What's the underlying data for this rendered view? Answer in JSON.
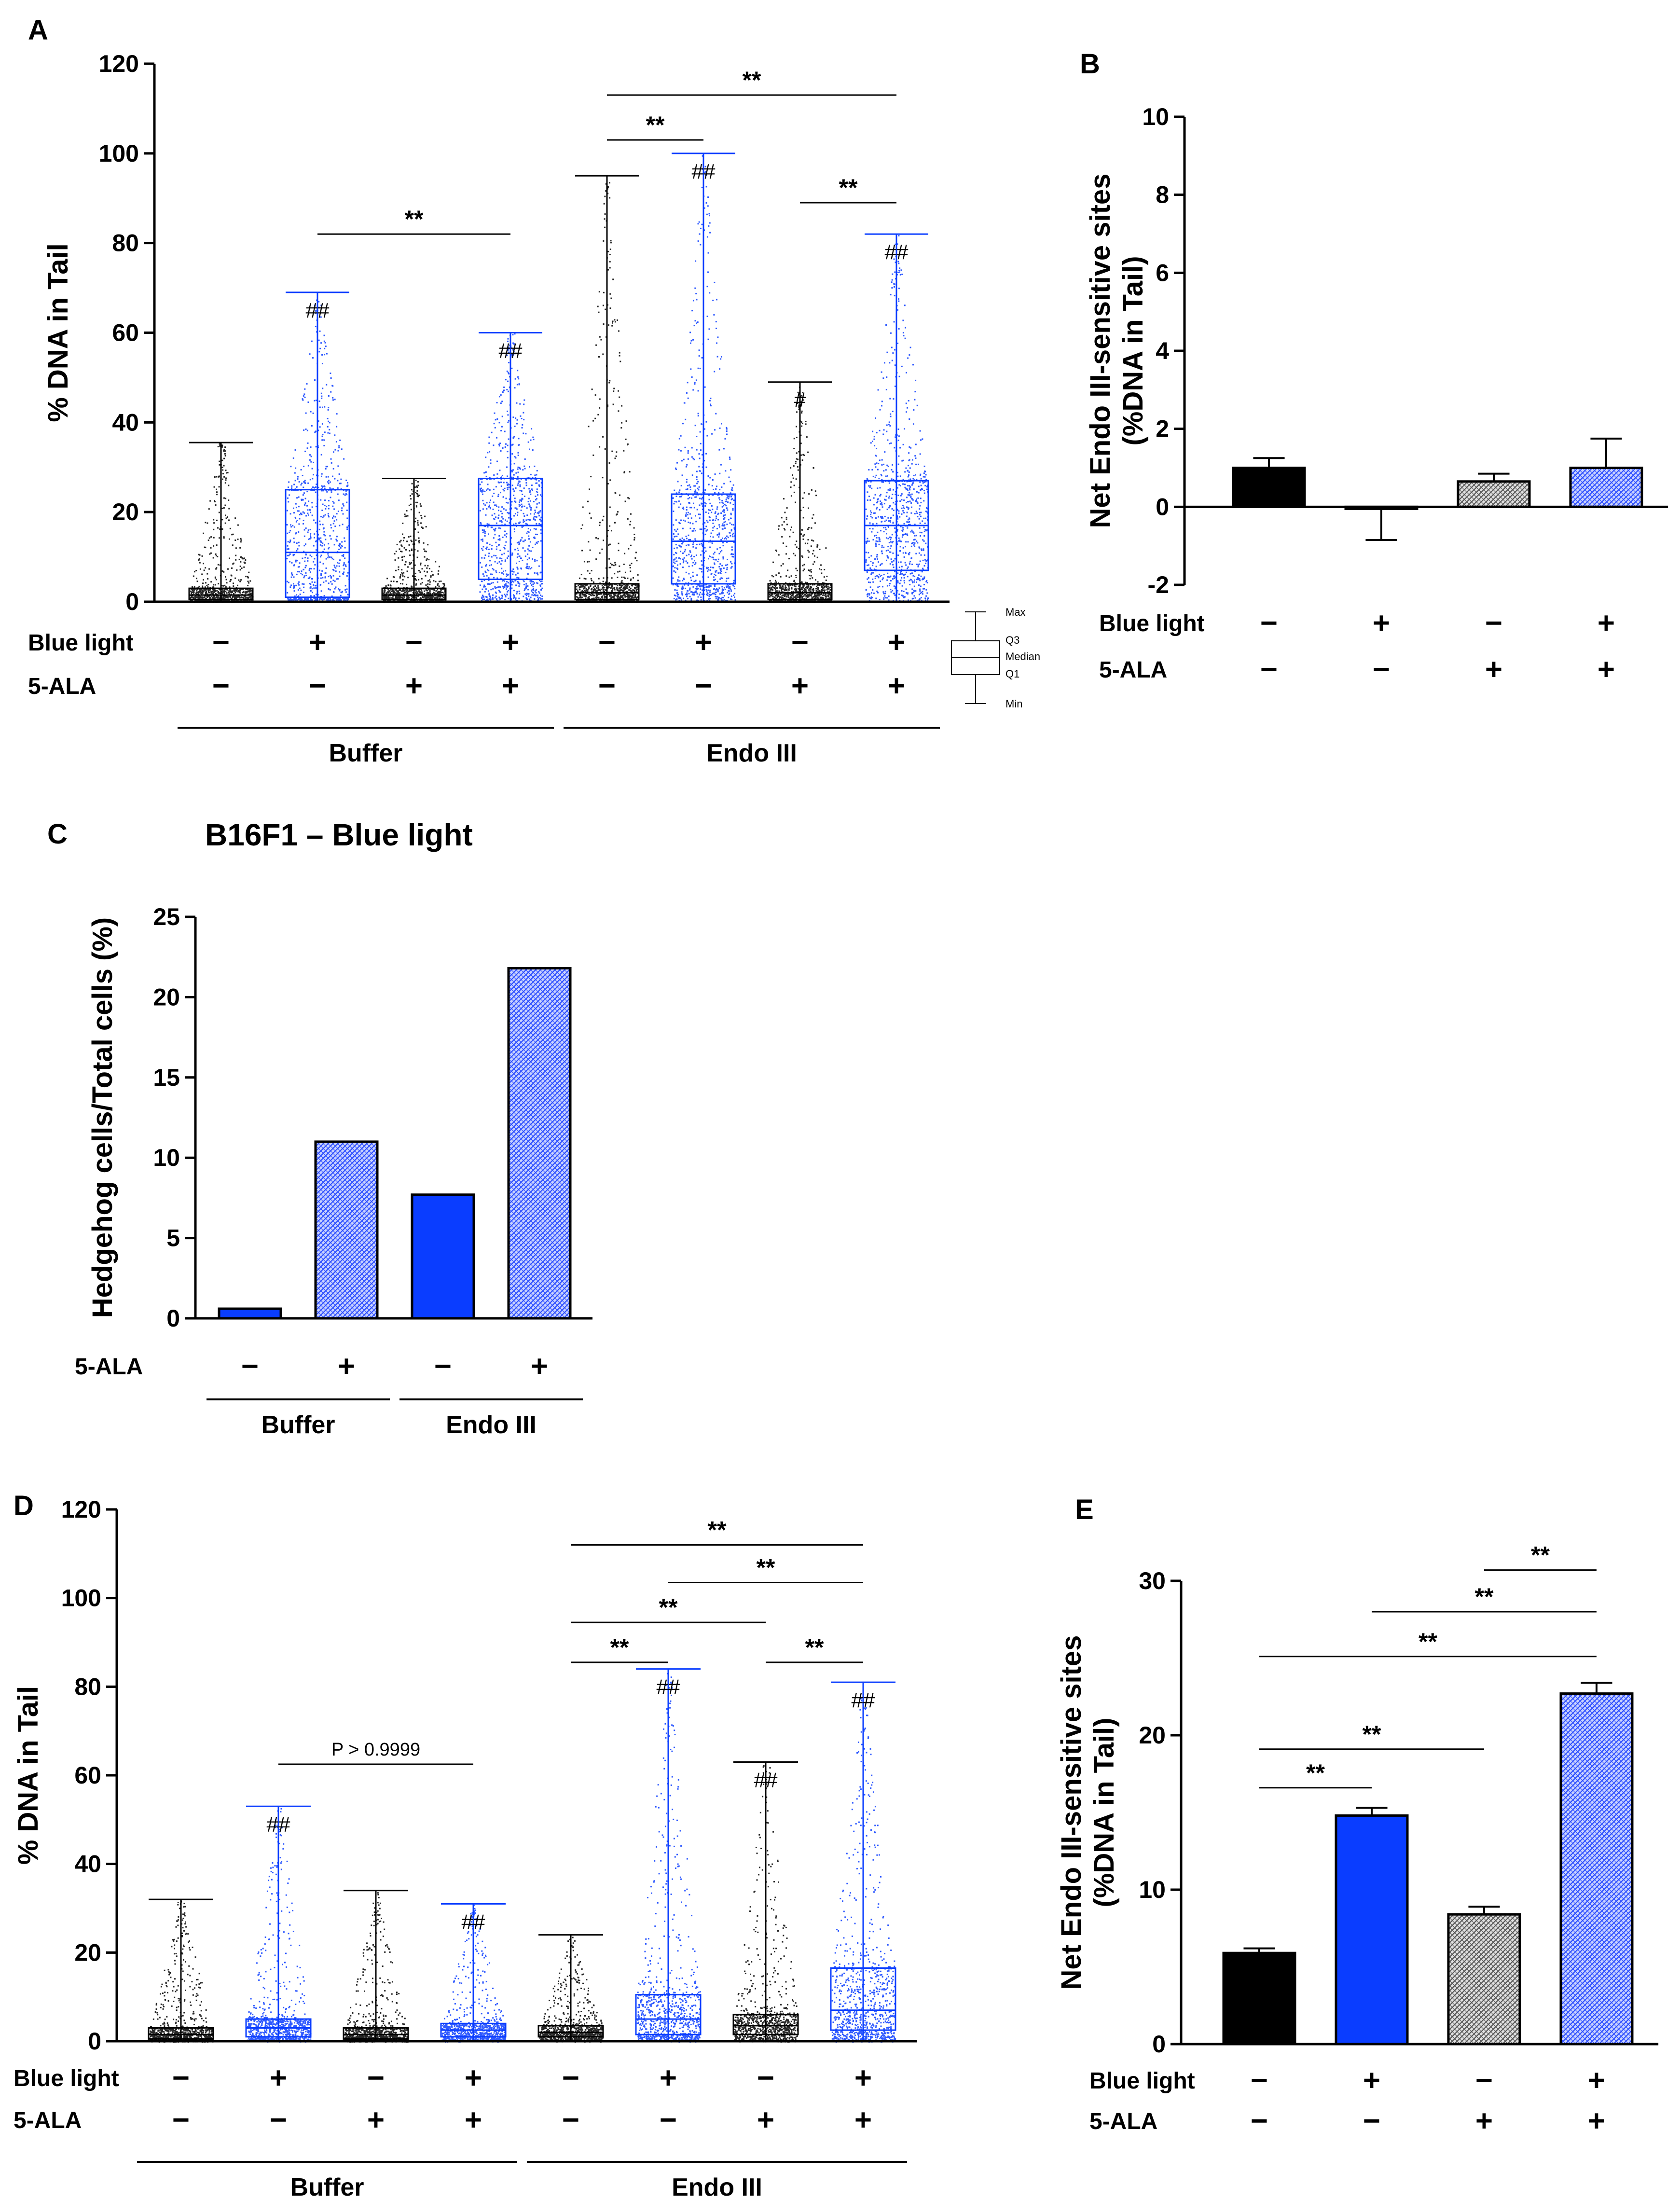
{
  "colors": {
    "black": "#000000",
    "blue": "#0a3dff",
    "grey": "#888888",
    "hatchBlue": "#2a4cff"
  },
  "labels": {
    "blue_light": "Blue light",
    "ala": "5-ALA",
    "buffer": "Buffer",
    "endo": "Endo III",
    "legend_max": "Max",
    "legend_q3": "Q3",
    "legend_median": "Median",
    "legend_q1": "Q1",
    "legend_min": "Min"
  },
  "chart_data": [
    {
      "panel": "A",
      "type": "box",
      "ylabel": "% DNA in Tail",
      "ylim": [
        0,
        120
      ],
      "yticks": [
        "0",
        "20",
        "40",
        "60",
        "80",
        "100",
        "120"
      ],
      "blue_light": [
        "−",
        "+",
        "−",
        "+",
        "−",
        "+",
        "−",
        "+"
      ],
      "ala": [
        "−",
        "−",
        "+",
        "+",
        "−",
        "−",
        "+",
        "+"
      ],
      "groups": [
        "Buffer",
        "Endo III"
      ],
      "boxes": [
        {
          "min": 0,
          "q1": 0.5,
          "median": 1.5,
          "q3": 3,
          "max": 35.5,
          "color": "black",
          "mark": ""
        },
        {
          "min": 0,
          "q1": 1,
          "median": 11,
          "q3": 25,
          "max": 69,
          "color": "blue",
          "mark": "##"
        },
        {
          "min": 0,
          "q1": 0.5,
          "median": 1.5,
          "q3": 3,
          "max": 27.5,
          "color": "black",
          "mark": ""
        },
        {
          "min": 0,
          "q1": 5,
          "median": 17,
          "q3": 27.5,
          "max": 60,
          "color": "blue",
          "mark": "##"
        },
        {
          "min": 0,
          "q1": 0.5,
          "median": 2,
          "q3": 4,
          "max": 95,
          "color": "black",
          "mark": ""
        },
        {
          "min": 0,
          "q1": 4,
          "median": 13.5,
          "q3": 24,
          "max": 100,
          "color": "blue",
          "mark": "##"
        },
        {
          "min": 0,
          "q1": 0.5,
          "median": 2,
          "q3": 4,
          "max": 49,
          "color": "black",
          "mark": "#"
        },
        {
          "min": 0,
          "q1": 7,
          "median": 17,
          "q3": 27,
          "max": 82,
          "color": "blue",
          "mark": "##"
        }
      ],
      "significance": [
        {
          "from": 1,
          "to": 3,
          "y": 82,
          "label": "**"
        },
        {
          "from": 4,
          "to": 5,
          "y": 103,
          "label": "**"
        },
        {
          "from": 4,
          "to": 7,
          "y": 113,
          "label": "**"
        },
        {
          "from": 6,
          "to": 7,
          "y": 89,
          "label": "**"
        }
      ]
    },
    {
      "panel": "B",
      "type": "bar",
      "ylabel": "Net Endo III-sensitive sites",
      "ylabel2": "(%DNA in Tail)",
      "ylim": [
        -2,
        10
      ],
      "yticks": [
        "-2",
        "0",
        "2",
        "4",
        "6",
        "8",
        "10"
      ],
      "blue_light": [
        "−",
        "+",
        "−",
        "+"
      ],
      "ala": [
        "−",
        "−",
        "+",
        "+"
      ],
      "values": [
        1.0,
        -0.05,
        0.65,
        1.0
      ],
      "errors": [
        0.25,
        0.8,
        0.2,
        0.75
      ],
      "fills": [
        "black",
        "blue",
        "grey-hatch",
        "blue-hatch"
      ]
    },
    {
      "panel": "C",
      "type": "bar",
      "title": "B16F1 – Blue light",
      "ylabel": "Hedgehog cells/Total cells (%)",
      "ylim": [
        0,
        25
      ],
      "yticks": [
        "0",
        "5",
        "10",
        "15",
        "20",
        "25"
      ],
      "ala": [
        "−",
        "+",
        "−",
        "+"
      ],
      "groups": [
        "Buffer",
        "Endo III"
      ],
      "values": [
        0.6,
        11.0,
        7.7,
        21.8
      ],
      "fills": [
        "blue",
        "blue-hatch",
        "blue",
        "blue-hatch"
      ]
    },
    {
      "panel": "D",
      "type": "box",
      "ylabel": "% DNA in Tail",
      "ylim": [
        0,
        120
      ],
      "yticks": [
        "0",
        "20",
        "40",
        "60",
        "80",
        "100",
        "120"
      ],
      "blue_light": [
        "−",
        "+",
        "−",
        "+",
        "−",
        "+",
        "−",
        "+"
      ],
      "ala": [
        "−",
        "−",
        "+",
        "+",
        "−",
        "−",
        "+",
        "+"
      ],
      "groups": [
        "Buffer",
        "Endo III"
      ],
      "pvalue_text": "P > 0.9999",
      "boxes": [
        {
          "min": 0,
          "q1": 0.5,
          "median": 1.5,
          "q3": 3,
          "max": 32,
          "color": "black",
          "mark": ""
        },
        {
          "min": 0,
          "q1": 1,
          "median": 3,
          "q3": 5,
          "max": 53,
          "color": "blue",
          "mark": "##"
        },
        {
          "min": 0,
          "q1": 0.5,
          "median": 1.5,
          "q3": 3,
          "max": 34,
          "color": "black",
          "mark": ""
        },
        {
          "min": 0,
          "q1": 1,
          "median": 2.5,
          "q3": 4,
          "max": 31,
          "color": "blue",
          "mark": "##"
        },
        {
          "min": 0,
          "q1": 1,
          "median": 2,
          "q3": 3.5,
          "max": 24,
          "color": "black",
          "mark": ""
        },
        {
          "min": 0,
          "q1": 1.5,
          "median": 5,
          "q3": 10.5,
          "max": 84,
          "color": "blue",
          "mark": "##"
        },
        {
          "min": 0,
          "q1": 1.5,
          "median": 3.5,
          "q3": 6,
          "max": 63,
          "color": "black",
          "mark": "##"
        },
        {
          "min": 0,
          "q1": 2.5,
          "median": 7,
          "q3": 16.5,
          "max": 81,
          "color": "blue",
          "mark": "##"
        }
      ],
      "significance": [
        {
          "from": 1,
          "to": 3,
          "y": 62.5,
          "label": "P > 0.9999",
          "kind": "text"
        },
        {
          "from": 4,
          "to": 5,
          "y": 85.5,
          "label": "**"
        },
        {
          "from": 6,
          "to": 7,
          "y": 85.5,
          "label": "**"
        },
        {
          "from": 4,
          "to": 6,
          "y": 94.5,
          "label": "**"
        },
        {
          "from": 5,
          "to": 7,
          "y": 103.5,
          "label": "**"
        },
        {
          "from": 4,
          "to": 7,
          "y": 112,
          "label": "**"
        }
      ]
    },
    {
      "panel": "E",
      "type": "bar",
      "ylabel": "Net Endo III-sensitive sites",
      "ylabel2": "(%DNA in Tail)",
      "ylim": [
        0,
        30
      ],
      "yticks": [
        "0",
        "10",
        "20",
        "30"
      ],
      "blue_light": [
        "−",
        "+",
        "−",
        "+"
      ],
      "ala": [
        "−",
        "−",
        "+",
        "+"
      ],
      "values": [
        5.9,
        14.8,
        8.4,
        22.7
      ],
      "errors": [
        0.3,
        0.5,
        0.5,
        0.7
      ],
      "fills": [
        "black",
        "blue",
        "grey-hatch",
        "blue-hatch"
      ],
      "significance": [
        {
          "from": 0,
          "to": 1,
          "y": 16.6,
          "label": "**"
        },
        {
          "from": 0,
          "to": 2,
          "y": 19.1,
          "label": "**"
        },
        {
          "from": 0,
          "to": 3,
          "y": 25.1,
          "label": "**"
        },
        {
          "from": 1,
          "to": 3,
          "y": 28.0,
          "label": "**"
        },
        {
          "from": 2,
          "to": 3,
          "y": 30.7,
          "label": "**"
        }
      ]
    }
  ]
}
